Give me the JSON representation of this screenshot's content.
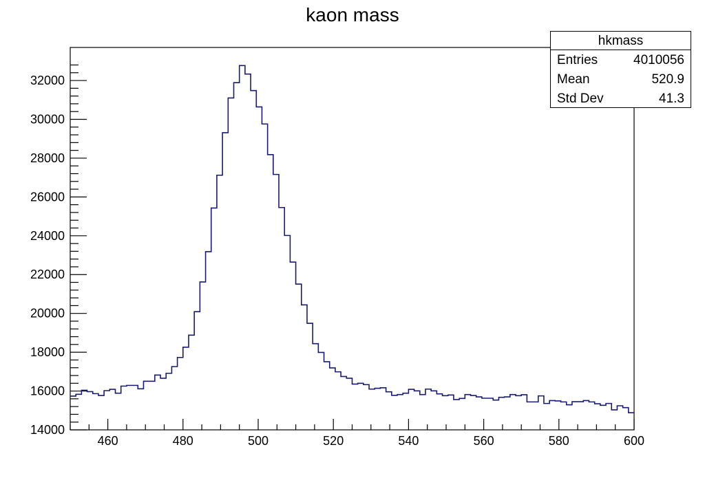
{
  "chart_data": {
    "type": "histogram",
    "title": "kaon mass",
    "xlabel": "",
    "ylabel": "",
    "xlim": [
      450,
      600
    ],
    "ylim": [
      14000,
      33000
    ],
    "bin_width": 1.5,
    "x_ticks": [
      460,
      480,
      500,
      520,
      540,
      560,
      580,
      600
    ],
    "y_ticks": [
      14000,
      16000,
      18000,
      20000,
      22000,
      24000,
      26000,
      28000,
      30000,
      32000
    ],
    "grid": false,
    "line_color": "#1a1a6e",
    "values": [
      15740,
      15830,
      16040,
      15970,
      15865,
      15770,
      16020,
      16090,
      15890,
      16255,
      16290,
      16290,
      16115,
      16505,
      16505,
      16825,
      16660,
      16915,
      17260,
      17730,
      18260,
      18880,
      20090,
      21620,
      23180,
      25430,
      27120,
      29310,
      31100,
      31890,
      32770,
      32330,
      31480,
      30640,
      29760,
      28180,
      27160,
      25455,
      24015,
      22645,
      21510,
      20440,
      19490,
      18440,
      17990,
      17510,
      17190,
      16990,
      16750,
      16660,
      16360,
      16400,
      16330,
      16100,
      16140,
      16170,
      15960,
      15780,
      15820,
      15890,
      16090,
      16010,
      15820,
      16100,
      16010,
      15855,
      15760,
      15795,
      15560,
      15620,
      15820,
      15770,
      15700,
      15630,
      15630,
      15535,
      15675,
      15700,
      15820,
      15760,
      15810,
      15440,
      15440,
      15750,
      15360,
      15510,
      15490,
      15440,
      15290,
      15450,
      15450,
      15510,
      15440,
      15345,
      15265,
      15360,
      15030,
      15240,
      15145,
      14885
    ],
    "stats": {
      "name": "hkmass",
      "rows": [
        {
          "label": "Entries",
          "value": "4010056"
        },
        {
          "label": "Mean",
          "value": "520.9"
        },
        {
          "label": "Std Dev",
          "value": "41.3"
        }
      ]
    },
    "legend_position": "top-right"
  }
}
